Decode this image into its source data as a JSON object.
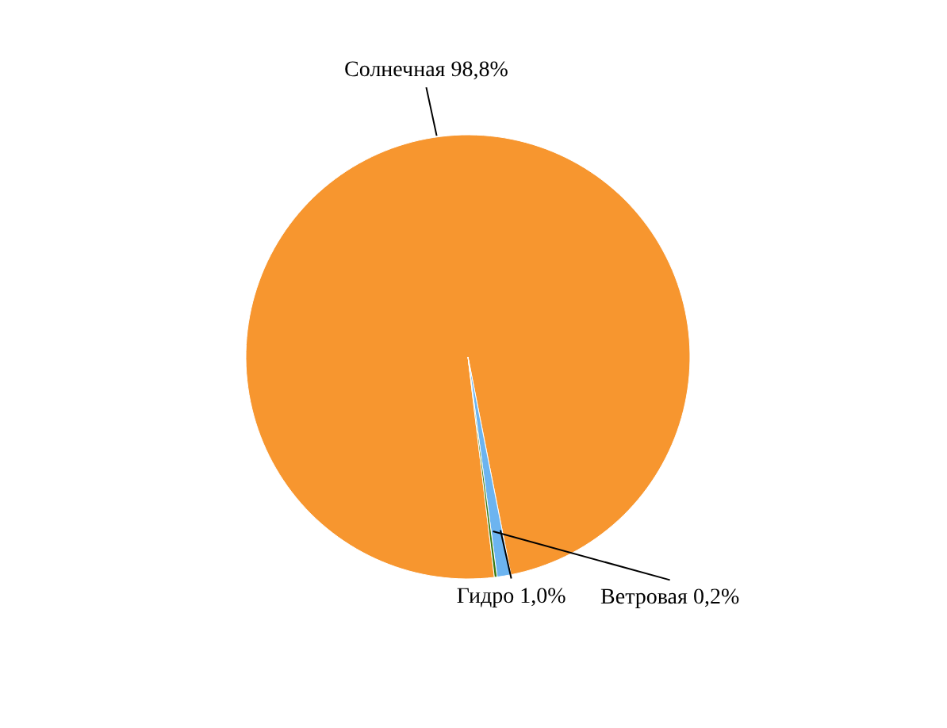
{
  "chart_data": {
    "type": "pie",
    "categories": [
      "Солнечная",
      "Гидро",
      "Ветровая"
    ],
    "values": [
      98.8,
      1.0,
      0.2
    ],
    "colors": [
      "#f7962f",
      "#6cb4f0",
      "#3a7a12"
    ],
    "value_labels": [
      "98,8%",
      "1,0%",
      "0,2%"
    ]
  }
}
